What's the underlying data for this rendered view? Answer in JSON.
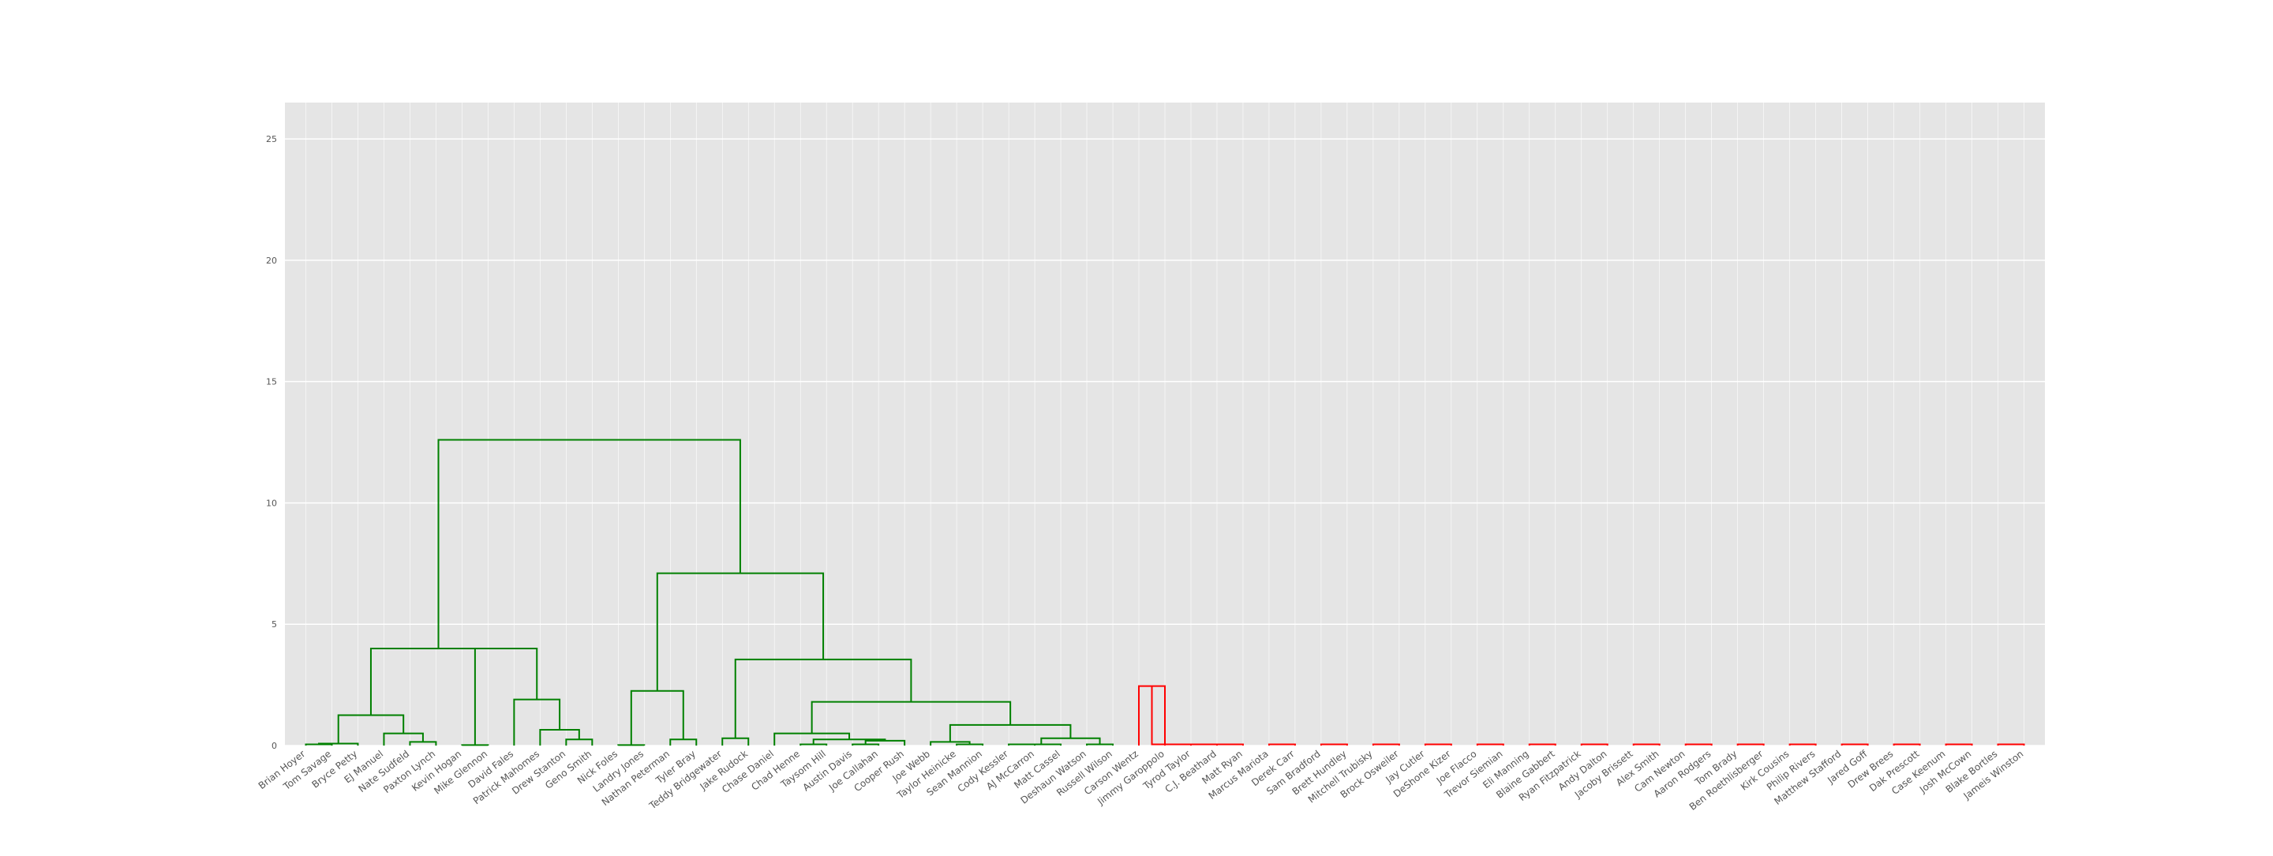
{
  "chart_data": {
    "type": "dendrogram",
    "title": "",
    "xlabel": "",
    "ylabel": "",
    "ylim": [
      0,
      26.5
    ],
    "yticks": [
      0,
      5,
      10,
      15,
      20,
      25
    ],
    "grid": true,
    "colors": {
      "cluster_a": "#008000",
      "cluster_b": "#ff0000",
      "above_threshold": "#0000ff",
      "plot_bg": "#e5e5e5",
      "grid": "#ffffff",
      "tick_text": "#555555"
    },
    "leaves": [
      "Brian Hoyer",
      "Tom Savage",
      "Bryce Petty",
      "EJ Manuel",
      "Nate Sudfeld",
      "Paxton Lynch",
      "Kevin Hogan",
      "Mike Glennon",
      "David Fales",
      "Patrick Mahomes",
      "Drew Stanton",
      "Geno Smith",
      "Nick Foles",
      "Landry Jones",
      "Nathan Peterman",
      "Tyler Bray",
      "Teddy Bridgewater",
      "Jake Rudock",
      "Chase Daniel",
      "Chad Henne",
      "Taysom Hill",
      "Austin Davis",
      "Joe Callahan",
      "Cooper Rush",
      "Joe Webb",
      "Taylor Heinicke",
      "Sean Mannion",
      "Cody Kessler",
      "AJ McCarron",
      "Matt Cassel",
      "Deshaun Watson",
      "Russell Wilson",
      "Carson Wentz",
      "Jimmy Garoppolo",
      "Tyrod Taylor",
      "C.J. Beathard",
      "Matt Ryan",
      "Marcus Mariota",
      "Derek Carr",
      "Sam Bradford",
      "Brett Hundley",
      "Mitchell Trubisky",
      "Brock Osweiler",
      "Jay Cutler",
      "DeShone Kizer",
      "Joe Flacco",
      "Trevor Siemian",
      "Eli Manning",
      "Blaine Gabbert",
      "Ryan Fitzpatrick",
      "Andy Dalton",
      "Jacoby Brissett",
      "Alex Smith",
      "Cam Newton",
      "Aaron Rodgers",
      "Tom Brady",
      "Ben Roethlisberger",
      "Kirk Cousins",
      "Philip Rivers",
      "Matthew Stafford",
      "Jared Goff",
      "Drew Brees",
      "Dak Prescott",
      "Case Keenum",
      "Josh McCown",
      "Blake Bortles",
      "Jameis Winston"
    ],
    "merges": [
      {
        "a": 0,
        "b": 1,
        "h": 0.05,
        "cluster": "cluster_a"
      },
      {
        "a": "n0",
        "b": 2,
        "h": 0.08,
        "cluster": "cluster_a"
      },
      {
        "a": 4,
        "b": 5,
        "h": 0.15,
        "cluster": "cluster_a"
      },
      {
        "a": 3,
        "b": "n2",
        "h": 0.5,
        "cluster": "cluster_a"
      },
      {
        "a": "n1",
        "b": "n3",
        "h": 1.25,
        "cluster": "cluster_a"
      },
      {
        "a": 6,
        "b": 7,
        "h": 0.02,
        "cluster": "cluster_a"
      },
      {
        "a": 10,
        "b": 11,
        "h": 0.25,
        "cluster": "cluster_a"
      },
      {
        "a": 9,
        "b": "n6",
        "h": 0.65,
        "cluster": "cluster_a"
      },
      {
        "a": 8,
        "b": "n7",
        "h": 1.9,
        "cluster": "cluster_a"
      },
      {
        "a": "n5",
        "b": "n8",
        "h": 4.0,
        "cluster": "cluster_a"
      },
      {
        "a": "n4",
        "b": "n9",
        "h": 4.0,
        "cluster": "cluster_a"
      },
      {
        "a": 12,
        "b": 13,
        "h": 0.02,
        "cluster": "cluster_a"
      },
      {
        "a": 14,
        "b": 15,
        "h": 0.25,
        "cluster": "cluster_a"
      },
      {
        "a": "n11",
        "b": "n12",
        "h": 2.25,
        "cluster": "cluster_a"
      },
      {
        "a": 16,
        "b": 17,
        "h": 0.3,
        "cluster": "cluster_a"
      },
      {
        "a": 19,
        "b": 20,
        "h": 0.05,
        "cluster": "cluster_a"
      },
      {
        "a": 21,
        "b": 22,
        "h": 0.05,
        "cluster": "cluster_a"
      },
      {
        "a": "n16",
        "b": 23,
        "h": 0.2,
        "cluster": "cluster_a"
      },
      {
        "a": "n15",
        "b": "n17",
        "h": 0.25,
        "cluster": "cluster_a"
      },
      {
        "a": 18,
        "b": "n18",
        "h": 0.5,
        "cluster": "cluster_a"
      },
      {
        "a": 25,
        "b": 26,
        "h": 0.05,
        "cluster": "cluster_a"
      },
      {
        "a": 24,
        "b": "n20",
        "h": 0.15,
        "cluster": "cluster_a"
      },
      {
        "a": 27,
        "b": 28,
        "h": 0.05,
        "cluster": "cluster_a"
      },
      {
        "a": "n22",
        "b": 29,
        "h": 0.05,
        "cluster": "cluster_a"
      },
      {
        "a": 30,
        "b": 31,
        "h": 0.05,
        "cluster": "cluster_a"
      },
      {
        "a": "n23",
        "b": "n24",
        "h": 0.3,
        "cluster": "cluster_a"
      },
      {
        "a": "n21",
        "b": "n25",
        "h": 0.85,
        "cluster": "cluster_a"
      },
      {
        "a": "n19",
        "b": "n26",
        "h": 1.8,
        "cluster": "cluster_a"
      },
      {
        "a": "n14",
        "b": "n27",
        "h": 3.55,
        "cluster": "cluster_a"
      },
      {
        "a": "n13",
        "b": "n28",
        "h": 7.1,
        "cluster": "cluster_a"
      },
      {
        "a": "n10",
        "b": "n29",
        "h": 12.6,
        "cluster": "cluster_a"
      },
      {
        "a": 32,
        "b": 33,
        "h": 2.45,
        "cluster": "cluster_b"
      },
      {
        "a": 34,
        "b": 35,
        "h": 0.05,
        "cluster": "cluster_b"
      },
      {
        "a": "n31",
        "b": 36,
        "h": 0.05,
        "cluster": "cluster_b"
      },
      {
        "a": 37,
        "b": 38,
        "h": 0.05,
        "cluster": "cluster_b"
      },
      {
        "a": 39,
        "b": 40,
        "h": 0.05,
        "cluster": "cluster_b"
      },
      {
        "a": 41,
        "b": 42,
        "h": 0.05,
        "cluster": "cluster_b"
      },
      {
        "a": 43,
        "b": 44,
        "h": 0.05,
        "cluster": "cluster_b"
      },
      {
        "a": 45,
        "b": 46,
        "h": 0.05,
        "cluster": "cluster_b"
      },
      {
        "a": 47,
        "b": 48,
        "h": 0.05,
        "cluster": "cluster_b"
      },
      {
        "a": 49,
        "b": 50,
        "h": 0.05,
        "cluster": "cluster_b"
      },
      {
        "a": 51,
        "b": 52,
        "h": 0.05,
        "cluster": "cluster_b"
      },
      {
        "a": 53,
        "b": 54,
        "h": 0.05,
        "cluster": "cluster_b"
      },
      {
        "a": 55,
        "b": 56,
        "h": 0.05,
        "cluster": "cluster_b"
      },
      {
        "a": 57,
        "b": 58,
        "h": 0.05,
        "cluster": "cluster_b"
      },
      {
        "a": 59,
        "b": 60,
        "h": 0.05,
        "cluster": "cluster_b"
      },
      {
        "a": 61,
        "b": 62,
        "h": 0.05,
        "cluster": "cluster_b"
      },
      {
        "a": 63,
        "b": 64,
        "h": 0.05,
        "cluster": "cluster_b"
      },
      {
        "a": 65,
        "b": 66,
        "h": 0.05,
        "cluster": "cluster_b"
      }
    ]
  }
}
